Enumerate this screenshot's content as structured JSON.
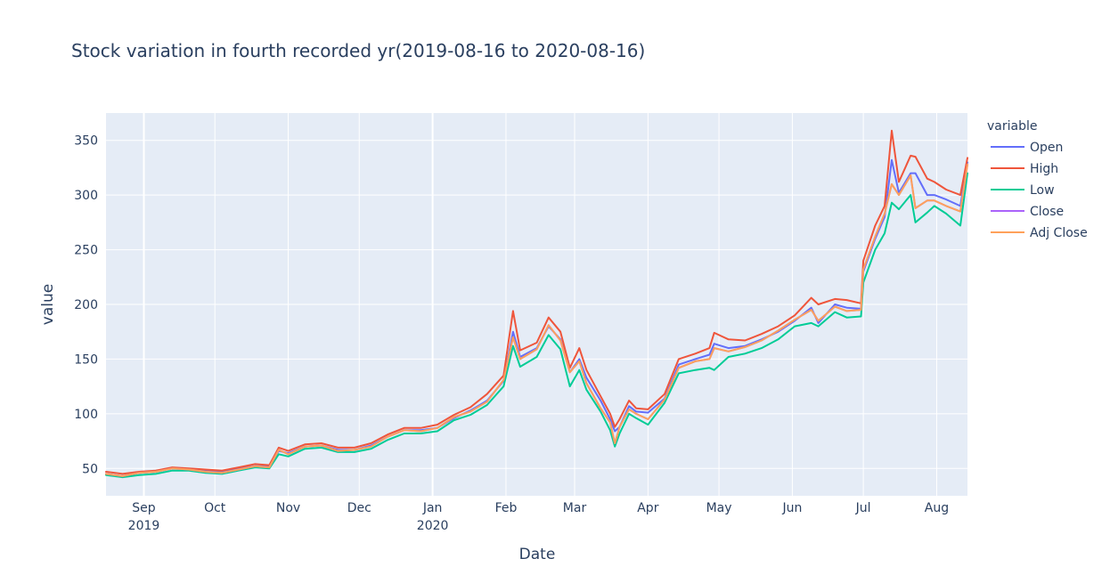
{
  "chart_data": {
    "type": "line",
    "title": "Stock variation in fourth recorded yr(2019-08-16 to 2020-08-16)",
    "xlabel": "Date",
    "ylabel": "value",
    "legend_title": "variable",
    "legend_position": "right",
    "grid": true,
    "colors": {
      "plot_bg": "#e5ecf6",
      "grid": "#ffffff",
      "text": "#2a3f5f"
    },
    "xlim": [
      "2019-08-16",
      "2020-08-14"
    ],
    "ylim": [
      25,
      375
    ],
    "y_ticks": [
      50,
      100,
      150,
      200,
      250,
      300,
      350
    ],
    "x_ticks": [
      {
        "date": "2019-09-01",
        "label": "Sep",
        "sublabel": "2019"
      },
      {
        "date": "2019-10-01",
        "label": "Oct",
        "sublabel": ""
      },
      {
        "date": "2019-11-01",
        "label": "Nov",
        "sublabel": ""
      },
      {
        "date": "2019-12-01",
        "label": "Dec",
        "sublabel": ""
      },
      {
        "date": "2020-01-01",
        "label": "Jan",
        "sublabel": "2020"
      },
      {
        "date": "2020-02-01",
        "label": "Feb",
        "sublabel": ""
      },
      {
        "date": "2020-03-01",
        "label": "Mar",
        "sublabel": ""
      },
      {
        "date": "2020-04-01",
        "label": "Apr",
        "sublabel": ""
      },
      {
        "date": "2020-05-01",
        "label": "May",
        "sublabel": ""
      },
      {
        "date": "2020-06-01",
        "label": "Jun",
        "sublabel": ""
      },
      {
        "date": "2020-07-01",
        "label": "Jul",
        "sublabel": ""
      },
      {
        "date": "2020-08-01",
        "label": "Aug",
        "sublabel": ""
      }
    ],
    "x": [
      "2019-08-16",
      "2019-08-23",
      "2019-08-30",
      "2019-09-06",
      "2019-09-13",
      "2019-09-20",
      "2019-09-27",
      "2019-10-04",
      "2019-10-11",
      "2019-10-18",
      "2019-10-24",
      "2019-10-28",
      "2019-11-01",
      "2019-11-08",
      "2019-11-15",
      "2019-11-22",
      "2019-11-29",
      "2019-12-06",
      "2019-12-13",
      "2019-12-20",
      "2019-12-27",
      "2020-01-03",
      "2020-01-10",
      "2020-01-17",
      "2020-01-24",
      "2020-01-31",
      "2020-02-04",
      "2020-02-07",
      "2020-02-14",
      "2020-02-19",
      "2020-02-24",
      "2020-02-28",
      "2020-03-03",
      "2020-03-06",
      "2020-03-12",
      "2020-03-16",
      "2020-03-18",
      "2020-03-20",
      "2020-03-24",
      "2020-03-27",
      "2020-04-01",
      "2020-04-08",
      "2020-04-14",
      "2020-04-21",
      "2020-04-27",
      "2020-04-29",
      "2020-05-05",
      "2020-05-12",
      "2020-05-19",
      "2020-05-26",
      "2020-06-02",
      "2020-06-09",
      "2020-06-12",
      "2020-06-19",
      "2020-06-24",
      "2020-06-30",
      "2020-07-01",
      "2020-07-06",
      "2020-07-10",
      "2020-07-13",
      "2020-07-16",
      "2020-07-21",
      "2020-07-23",
      "2020-07-28",
      "2020-07-31",
      "2020-08-05",
      "2020-08-11",
      "2020-08-14"
    ],
    "series": [
      {
        "name": "Open",
        "color": "#636efa",
        "values": [
          45,
          43,
          46,
          47,
          50,
          49,
          48,
          47,
          50,
          52,
          52,
          66,
          64,
          70,
          71,
          67,
          67,
          71,
          79,
          85,
          85,
          87,
          96,
          103,
          112,
          130,
          175,
          152,
          160,
          180,
          168,
          138,
          150,
          133,
          112,
          95,
          84,
          88,
          107,
          102,
          101,
          114,
          145,
          150,
          154,
          164,
          160,
          162,
          168,
          175,
          185,
          197,
          183,
          200,
          197,
          196,
          230,
          260,
          280,
          332,
          302,
          320,
          320,
          300,
          300,
          296,
          290,
          330
        ]
      },
      {
        "name": "High",
        "color": "#ef553b",
        "values": [
          47,
          45,
          47,
          48,
          51,
          50,
          49,
          48,
          51,
          54,
          53,
          69,
          66,
          72,
          73,
          69,
          69,
          73,
          81,
          87,
          87,
          90,
          99,
          106,
          118,
          135,
          194,
          158,
          165,
          188,
          175,
          142,
          160,
          140,
          116,
          100,
          88,
          95,
          112,
          105,
          104,
          118,
          150,
          155,
          160,
          174,
          168,
          167,
          173,
          180,
          190,
          206,
          200,
          205,
          204,
          201,
          240,
          272,
          290,
          359,
          312,
          336,
          335,
          315,
          312,
          305,
          300,
          334
        ]
      },
      {
        "name": "Low",
        "color": "#00cc96",
        "values": [
          44,
          42,
          44,
          45,
          48,
          48,
          46,
          45,
          48,
          51,
          50,
          63,
          61,
          68,
          69,
          65,
          65,
          68,
          76,
          82,
          82,
          84,
          94,
          99,
          108,
          125,
          162,
          143,
          152,
          172,
          159,
          125,
          140,
          122,
          102,
          85,
          70,
          82,
          100,
          96,
          90,
          110,
          137,
          140,
          142,
          140,
          152,
          155,
          160,
          168,
          180,
          183,
          180,
          193,
          188,
          189,
          220,
          250,
          265,
          293,
          287,
          300,
          275,
          284,
          290,
          283,
          272,
          320
        ]
      },
      {
        "name": "Close",
        "color": "#ab63fa",
        "values": [
          45,
          43,
          46,
          47,
          50,
          49,
          47,
          46,
          49,
          52,
          51,
          67,
          63,
          70,
          71,
          66,
          67,
          70,
          79,
          85,
          84,
          87,
          97,
          102,
          111,
          131,
          170,
          150,
          159,
          181,
          167,
          138,
          148,
          128,
          105,
          92,
          73,
          88,
          104,
          100,
          95,
          113,
          142,
          148,
          150,
          160,
          157,
          161,
          167,
          176,
          186,
          195,
          185,
          198,
          194,
          195,
          232,
          262,
          283,
          310,
          300,
          318,
          288,
          295,
          295,
          290,
          285,
          328
        ]
      },
      {
        "name": "Adj Close",
        "color": "#ffa15a",
        "values": [
          45,
          43,
          46,
          47,
          50,
          49,
          47,
          46,
          49,
          52,
          51,
          67,
          63,
          70,
          71,
          66,
          67,
          70,
          79,
          85,
          84,
          87,
          97,
          102,
          111,
          131,
          170,
          150,
          159,
          181,
          167,
          138,
          148,
          128,
          105,
          92,
          73,
          88,
          104,
          100,
          95,
          113,
          142,
          148,
          150,
          160,
          157,
          161,
          167,
          176,
          186,
          195,
          185,
          198,
          194,
          195,
          232,
          262,
          283,
          310,
          300,
          318,
          288,
          295,
          295,
          290,
          285,
          328
        ]
      }
    ]
  }
}
